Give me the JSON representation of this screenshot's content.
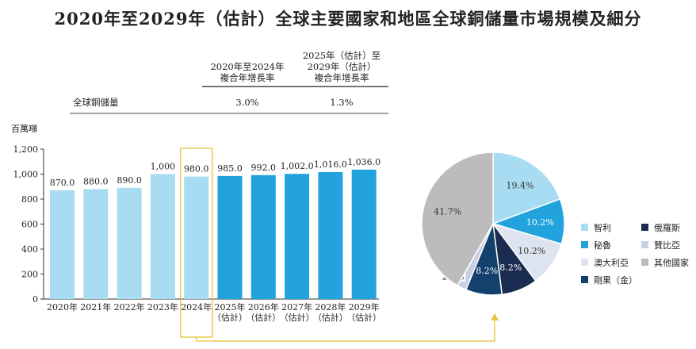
{
  "title": "2020年至2029年（估計）全球主要國家和地區全球銅儲量市場規模及細分",
  "cagr_table": {
    "col1_header": [
      "2020年至2024年",
      "複合年增長率"
    ],
    "col2_header": [
      "2025年（估計）至",
      "2029年（估計）",
      "複合年增長率"
    ],
    "row_label": "全球銅儲量",
    "col1_value": "3.0%",
    "col2_value": "1.3%"
  },
  "chart_data": [
    {
      "type": "bar",
      "ylabel": "百萬噸",
      "ylim": [
        0,
        1200
      ],
      "yticks": [
        "0",
        "200",
        "400",
        "600",
        "800",
        "1,000",
        "1,200"
      ],
      "ytick_values": [
        0,
        200,
        400,
        600,
        800,
        1000,
        1200
      ],
      "categories": [
        [
          "2020年"
        ],
        [
          "2021年"
        ],
        [
          "2022年"
        ],
        [
          "2023年"
        ],
        [
          "2024年"
        ],
        [
          "2025年",
          "（估計）"
        ],
        [
          "2026年",
          "（估計）"
        ],
        [
          "2027年",
          "（估計）"
        ],
        [
          "2028年",
          "（估計）"
        ],
        [
          "2029年",
          "（估計）"
        ]
      ],
      "values": [
        870.0,
        880.0,
        890.0,
        1000,
        980.0,
        985.0,
        992.0,
        1002.0,
        1016.0,
        1036.0
      ],
      "labels": [
        "870.0",
        "880.0",
        "890.0",
        "1,000",
        "980.0",
        "985.0",
        "992.0",
        "1,002.0",
        "1,016.0",
        "1,036.0"
      ],
      "colors": [
        "#a8dcf2",
        "#a8dcf2",
        "#a8dcf2",
        "#a8dcf2",
        "#a8dcf2",
        "#22a3dd",
        "#22a3dd",
        "#22a3dd",
        "#22a3dd",
        "#22a3dd"
      ],
      "highlighted_index": 4,
      "highlight_color": "#e8c33a"
    },
    {
      "type": "pie",
      "title": "",
      "slices": [
        {
          "name": "智利",
          "value": 19.4,
          "label": "19.4%",
          "color": "#a8dcf2"
        },
        {
          "name": "秘魯",
          "value": 10.2,
          "label": "10.2%",
          "color": "#22a3dd"
        },
        {
          "name": "澳大利亞",
          "value": 10.2,
          "label": "10.2%",
          "color": "#dde4ef"
        },
        {
          "name": "俄羅斯",
          "value": 8.2,
          "label": "8.2%",
          "color": "#1a2c4f"
        },
        {
          "name": "剛果（金）",
          "value": 8.2,
          "label": "8.2%",
          "color": "#13406d"
        },
        {
          "name": "贊比亞",
          "value": 2.1,
          "label": "2.1%",
          "color": "#c6cfe4"
        },
        {
          "name": "其他國家",
          "value": 41.7,
          "label": "41.7%",
          "color": "#bcbcbc"
        }
      ],
      "legend_order": [
        "智利",
        "俄羅斯",
        "秘魯",
        "贊比亞",
        "澳大利亞",
        "其他國家",
        "剛果（金）"
      ]
    }
  ]
}
